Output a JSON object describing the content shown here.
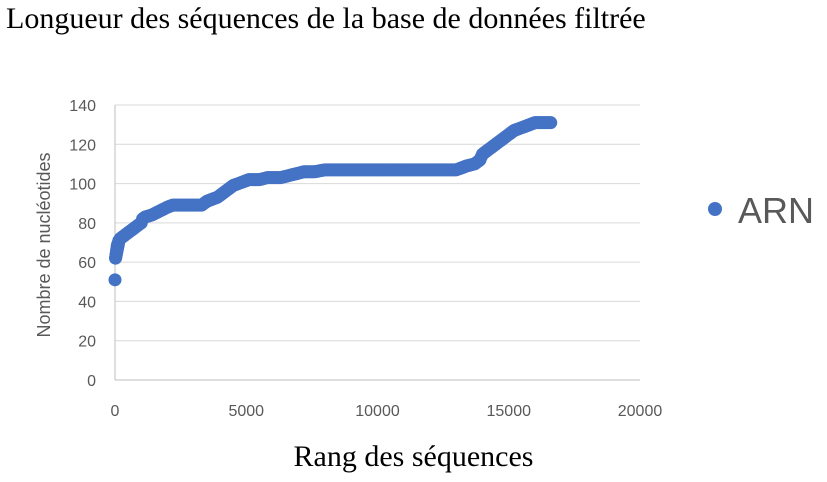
{
  "chart_data": {
    "type": "scatter",
    "title": "Longueur des séquences de la base de données filtrée",
    "xlabel": "Rang des séquences",
    "ylabel": "Nombre de nucléotides",
    "xlim": [
      0,
      20000
    ],
    "ylim": [
      0,
      140
    ],
    "xticks": [
      0,
      5000,
      10000,
      15000,
      20000
    ],
    "yticks": [
      0,
      20,
      40,
      60,
      80,
      100,
      120,
      140
    ],
    "grid": "horizontal",
    "legend_position": "right",
    "series": [
      {
        "name": "ARN",
        "color": "#4472C4",
        "points": [
          [
            0,
            51
          ],
          [
            20,
            62
          ],
          [
            40,
            64
          ],
          [
            60,
            66
          ],
          [
            80,
            68
          ],
          [
            100,
            69
          ],
          [
            150,
            71
          ],
          [
            200,
            72
          ],
          [
            300,
            73
          ],
          [
            400,
            74
          ],
          [
            500,
            75
          ],
          [
            600,
            76
          ],
          [
            700,
            77
          ],
          [
            800,
            78
          ],
          [
            900,
            79
          ],
          [
            1000,
            80
          ],
          [
            1050,
            82
          ],
          [
            1150,
            83
          ],
          [
            1400,
            84
          ],
          [
            1550,
            85
          ],
          [
            1700,
            86
          ],
          [
            1850,
            87
          ],
          [
            2000,
            88
          ],
          [
            2200,
            89
          ],
          [
            2600,
            89
          ],
          [
            3000,
            89
          ],
          [
            3300,
            89
          ],
          [
            3500,
            91
          ],
          [
            3700,
            92
          ],
          [
            3900,
            93
          ],
          [
            4100,
            95
          ],
          [
            4300,
            97
          ],
          [
            4500,
            99
          ],
          [
            4700,
            100
          ],
          [
            4900,
            101
          ],
          [
            5100,
            102
          ],
          [
            5500,
            102
          ],
          [
            5800,
            103
          ],
          [
            6300,
            103
          ],
          [
            6600,
            104
          ],
          [
            6900,
            105
          ],
          [
            7200,
            106
          ],
          [
            7600,
            106
          ],
          [
            8000,
            107
          ],
          [
            9000,
            107
          ],
          [
            10000,
            107
          ],
          [
            11000,
            107
          ],
          [
            12000,
            107
          ],
          [
            13000,
            107
          ],
          [
            13200,
            108
          ],
          [
            13400,
            109
          ],
          [
            13700,
            110
          ],
          [
            13900,
            112
          ],
          [
            14000,
            115
          ],
          [
            14200,
            117
          ],
          [
            14400,
            119
          ],
          [
            14600,
            121
          ],
          [
            14800,
            123
          ],
          [
            15000,
            125
          ],
          [
            15200,
            127
          ],
          [
            15400,
            128
          ],
          [
            15600,
            129
          ],
          [
            15800,
            130
          ],
          [
            16000,
            131
          ],
          [
            16300,
            131
          ],
          [
            16600,
            131
          ]
        ]
      }
    ]
  }
}
